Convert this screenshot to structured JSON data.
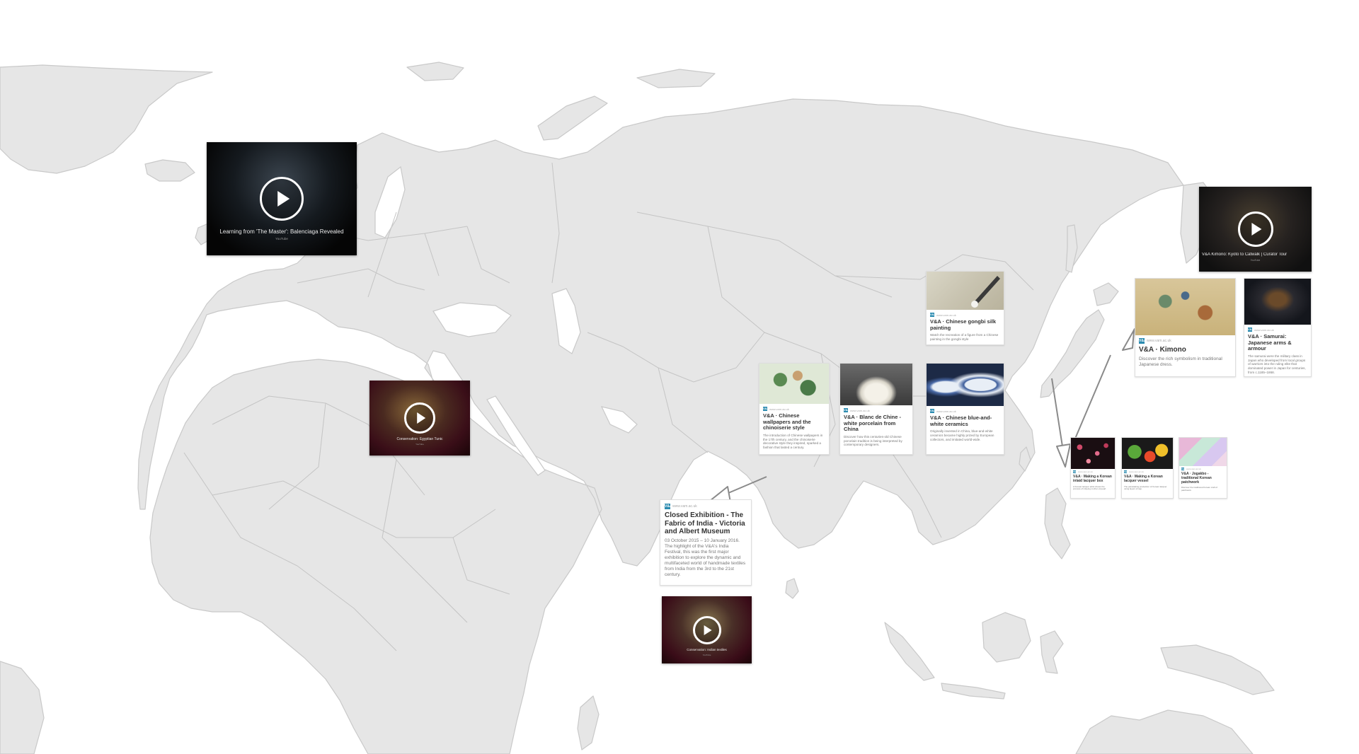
{
  "colors": {
    "land": "#e6e6e6",
    "coast": "#c9c9c9",
    "background": "#ffffff",
    "connector": "#8a8a8a",
    "source_icon": "#2b8bb0"
  },
  "source_icon_label": "V&A",
  "videos": [
    {
      "title": "Learning from 'The Master': Balenciaga Revealed",
      "source": "YouTube"
    },
    {
      "title": "Conservation: Egyptian Tunic",
      "source": "YouTube"
    },
    {
      "title": "Conservation: Indian textiles",
      "source": "YouTube"
    },
    {
      "title": "V&A Kimono: Kyoto to Catwalk | Curator Tour",
      "source": "YouTube"
    }
  ],
  "cards": {
    "gongbi": {
      "source": "www.vam.ac.uk",
      "title": "V&A · Chinese gongbi silk painting",
      "desc": "Watch the recreation of a figure from a Chinese painting in the gongbi style"
    },
    "wallpapers": {
      "source": "www.vam.ac.uk",
      "title": "V&A · Chinese wallpapers and the chinoiserie style",
      "desc": "The introduction of Chinese wallpapers in the 17th century, and the chinoiserie decorative style they inspired, sparked a fashion that lasted a century."
    },
    "blanc": {
      "source": "www.vam.ac.uk",
      "title": "V&A · Blanc de Chine - white porcelain from China",
      "desc": "Discover how this centuries-old Chinese porcelain tradition is being interpreted by contemporary designers."
    },
    "bluewhite": {
      "source": "www.vam.ac.uk",
      "title": "V&A · Chinese blue-and-white ceramics",
      "desc": "Originally invented in China, blue-and-white ceramics became highly prized by European collectors, and imitated world-wide."
    },
    "india": {
      "source": "www.vam.ac.uk",
      "title": "Closed Exhibition - The Fabric of India - Victoria and Albert Museum",
      "desc": "03 October 2015 – 10 January 2016. The highlight of the V&A's India Festival, this was the first major exhibition to explore the dynamic and multifaceted world of handmade textiles from India from the 3rd to the 21st century."
    },
    "kimono": {
      "source": "www.vam.ac.uk",
      "title": "V&A · Kimono",
      "desc": "Discover the rich symbolism in traditional Japanese dress."
    },
    "samurai": {
      "source": "www.vam.ac.uk",
      "title": "V&A · Samurai: Japanese arms & armour",
      "desc": "The samurai were the military class in Japan who developed from local groups of warriors into the ruling elite that dominated power in Japan for centuries, from c.1185–1868."
    },
    "lacquer_box": {
      "source": "www.vam.ac.uk",
      "title": "V&A · Making a Korean inlaid lacquer box",
      "desc": "A Korean lacquer artist shows the process of inlaying mother-of-pearl."
    },
    "lacquer_vessel": {
      "source": "www.vam.ac.uk",
      "title": "V&A · Making a Korean lacquer vessel",
      "desc": "The painstaking production of Korean lacquer using layers of sap."
    },
    "jogakbo": {
      "source": "www.vam.ac.uk",
      "title": "V&A · Jogakbo - traditional Korean patchwork",
      "desc": "Discover the traditional Korean craft of patchwork."
    }
  }
}
